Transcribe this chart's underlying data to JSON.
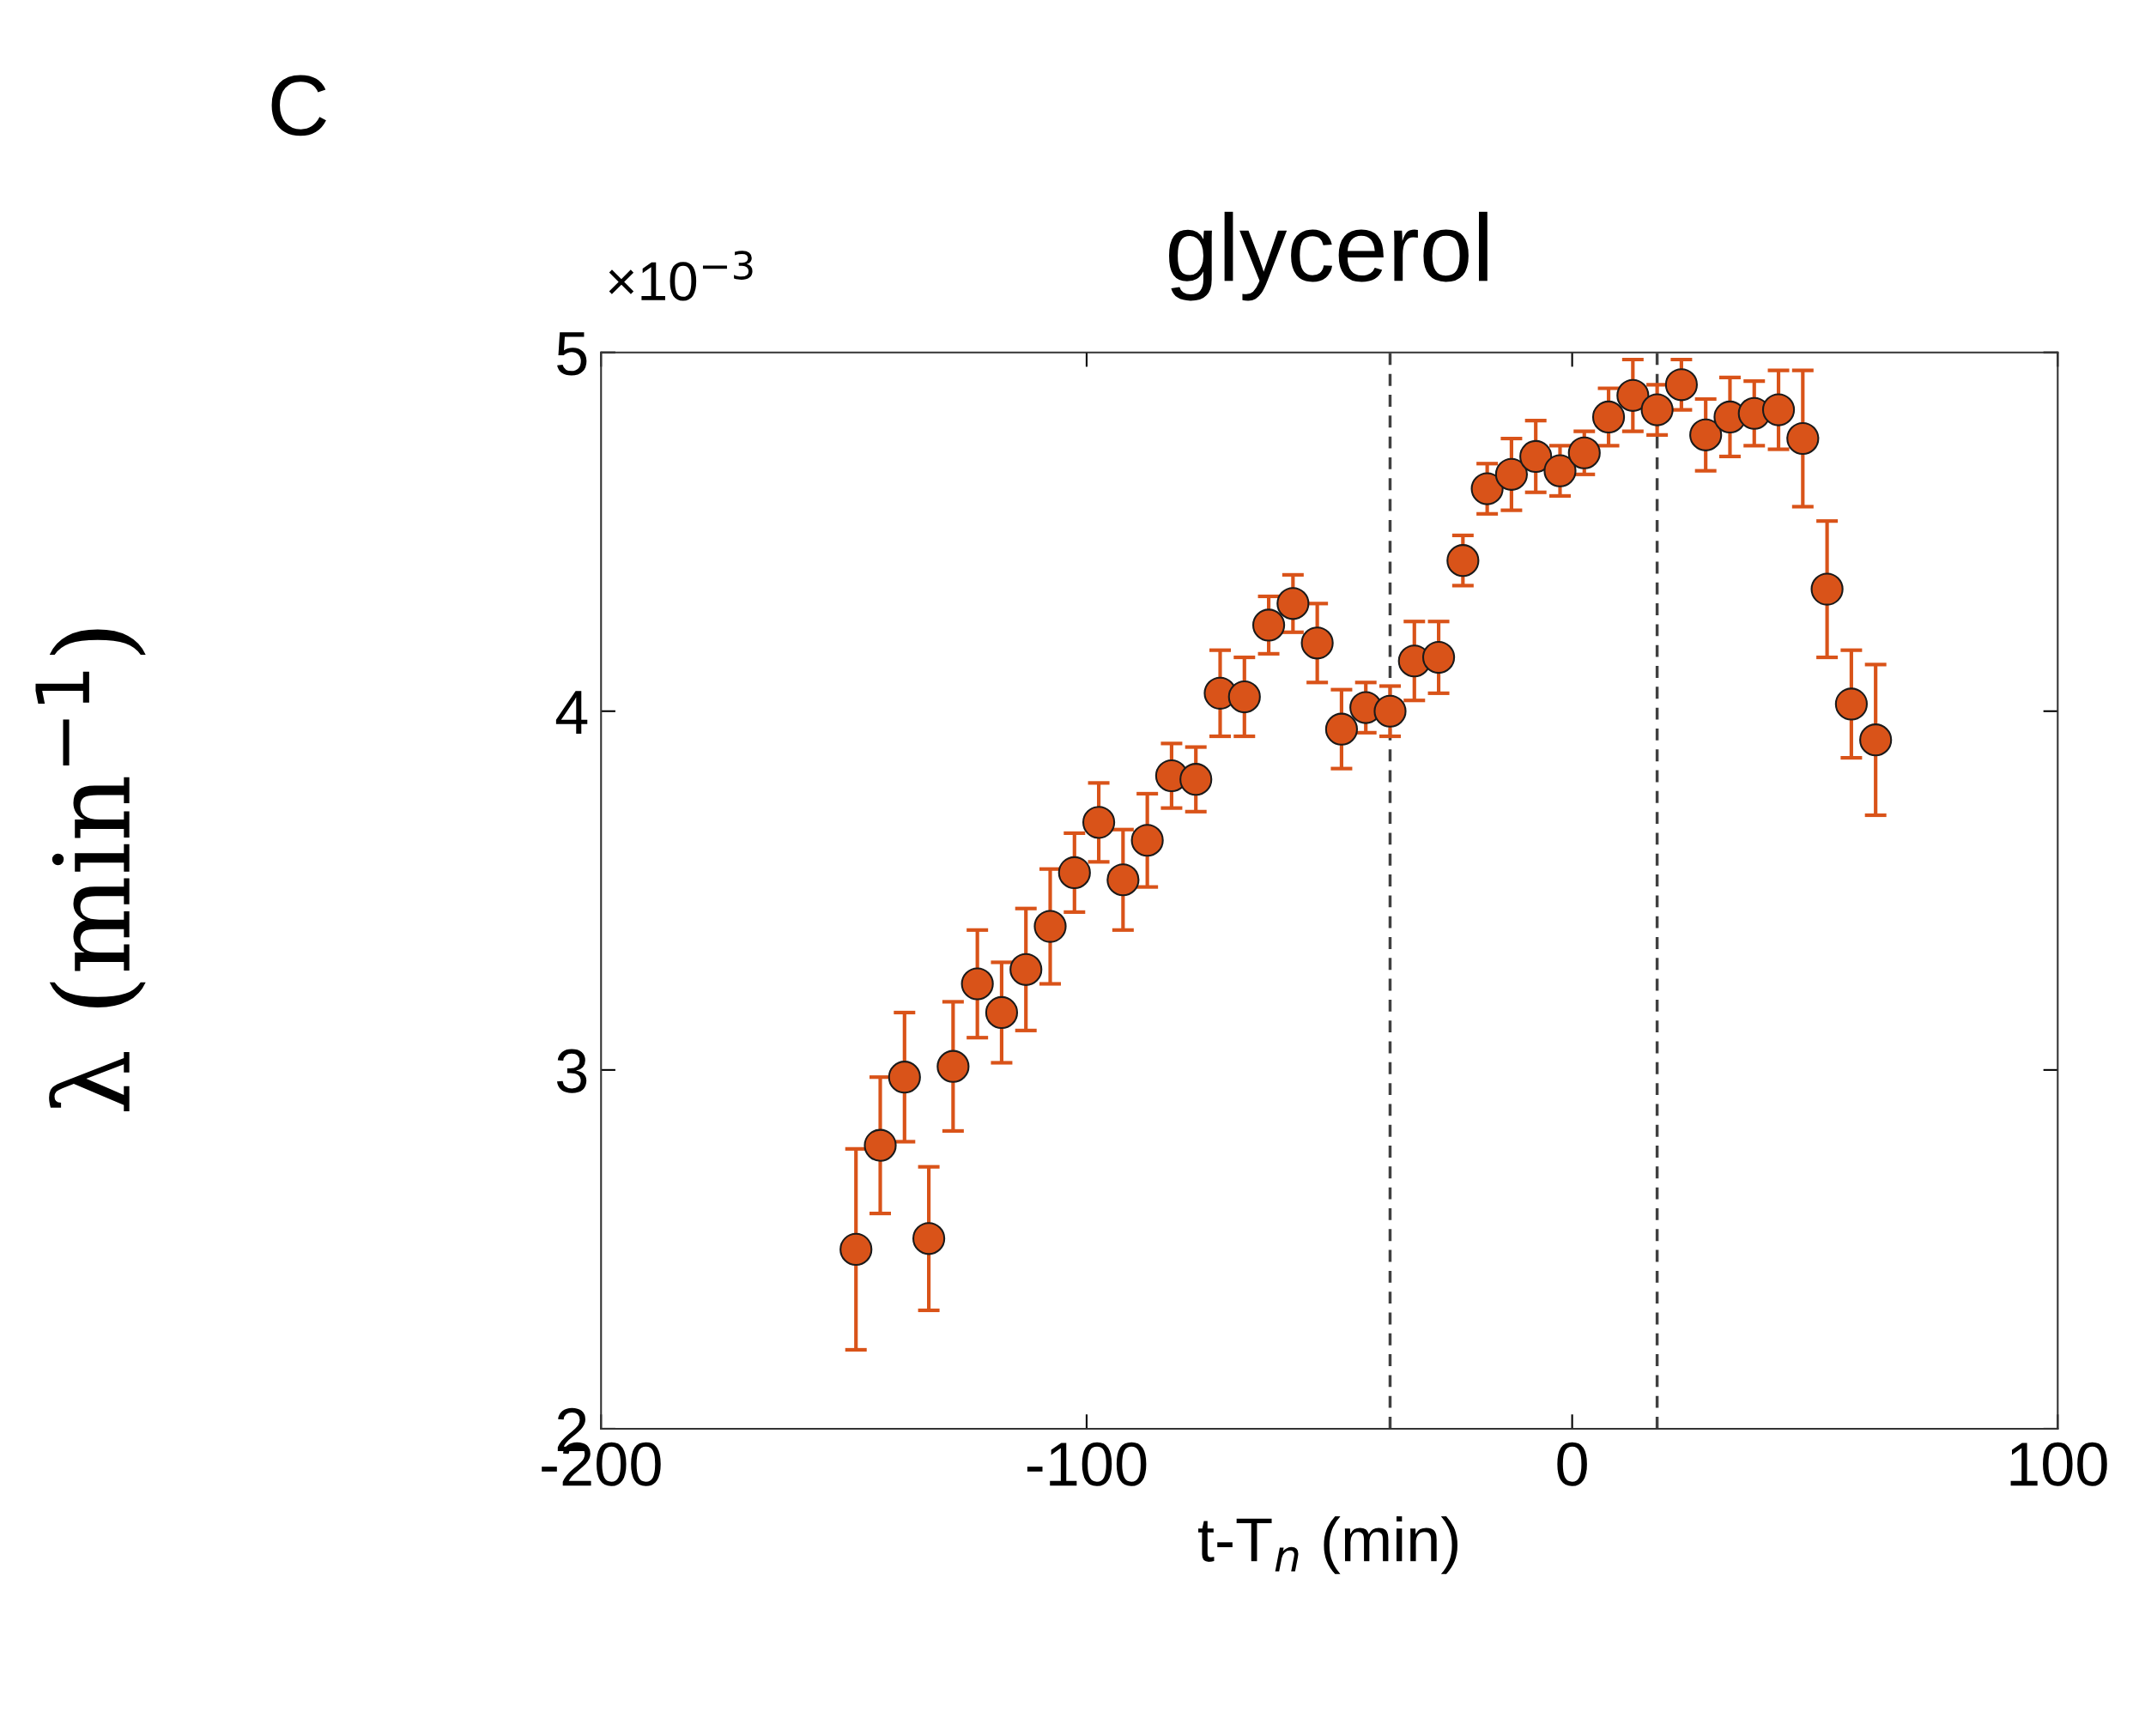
{
  "chart_data": {
    "type": "scatter",
    "title": "glycerol",
    "xlabel": "t-T$_{n}$ (min)",
    "ylabel": "λ (min$^{−1}$)",
    "annotations": [
      "C",
      "×10$^{−3}$"
    ],
    "x": [
      -147.5,
      -142.5,
      -137.5,
      -132.5,
      -127.5,
      -122.5,
      -117.5,
      -112.5,
      -107.5,
      -102.5,
      -97.5,
      -92.5,
      -87.5,
      -82.5,
      -77.5,
      -72.5,
      -67.5,
      -62.5,
      -57.5,
      -52.5,
      -47.5,
      -42.5,
      -37.5,
      -32.5,
      -27.5,
      -22.5,
      -17.5,
      -12.5,
      -7.5,
      -2.5,
      2.5,
      7.5,
      12.5,
      17.5,
      22.5,
      27.5,
      32.5,
      37.5,
      42.5,
      47.5,
      52.5,
      57.5,
      62.5
    ],
    "series": [
      {
        "color": "#d95319",
        "values": [
          2.5,
          2.79,
          2.98,
          2.53,
          3.01,
          3.24,
          3.16,
          3.28,
          3.4,
          3.55,
          3.69,
          3.53,
          3.64,
          3.82,
          3.81,
          4.05,
          4.04,
          4.24,
          4.3,
          4.19,
          3.95,
          4.01,
          4.0,
          4.14,
          4.15,
          4.42,
          4.62,
          4.66,
          4.71,
          4.67,
          4.72,
          4.82,
          4.88,
          4.84,
          4.91,
          4.77,
          4.82,
          4.83,
          4.84,
          4.76,
          4.34,
          4.02,
          3.92
        ],
        "errors": [
          0.28,
          0.19,
          0.18,
          0.2,
          0.18,
          0.15,
          0.14,
          0.17,
          0.16,
          0.11,
          0.11,
          0.14,
          0.13,
          0.09,
          0.09,
          0.12,
          0.11,
          0.08,
          0.08,
          0.11,
          0.11,
          0.07,
          0.07,
          0.11,
          0.1,
          0.07,
          0.07,
          0.1,
          0.1,
          0.07,
          0.06,
          0.08,
          0.1,
          0.07,
          0.07,
          0.1,
          0.11,
          0.09,
          0.11,
          0.19,
          0.19,
          0.15,
          0.21
        ]
      }
    ],
    "xlim": [
      -200,
      100
    ],
    "xticks": [
      -200,
      -100,
      0,
      100
    ],
    "ylim": [
      2,
      5
    ],
    "yticks": [
      2,
      3,
      4,
      5
    ],
    "ref_lines": [
      {
        "axis": "x",
        "value": -37.5,
        "color": "#404040",
        "line_style": "dashed"
      },
      {
        "axis": "x",
        "value": 17.5,
        "color": "#404040",
        "line_style": "dashed"
      }
    ],
    "marker": "circle",
    "grid": false,
    "legend": false
  }
}
